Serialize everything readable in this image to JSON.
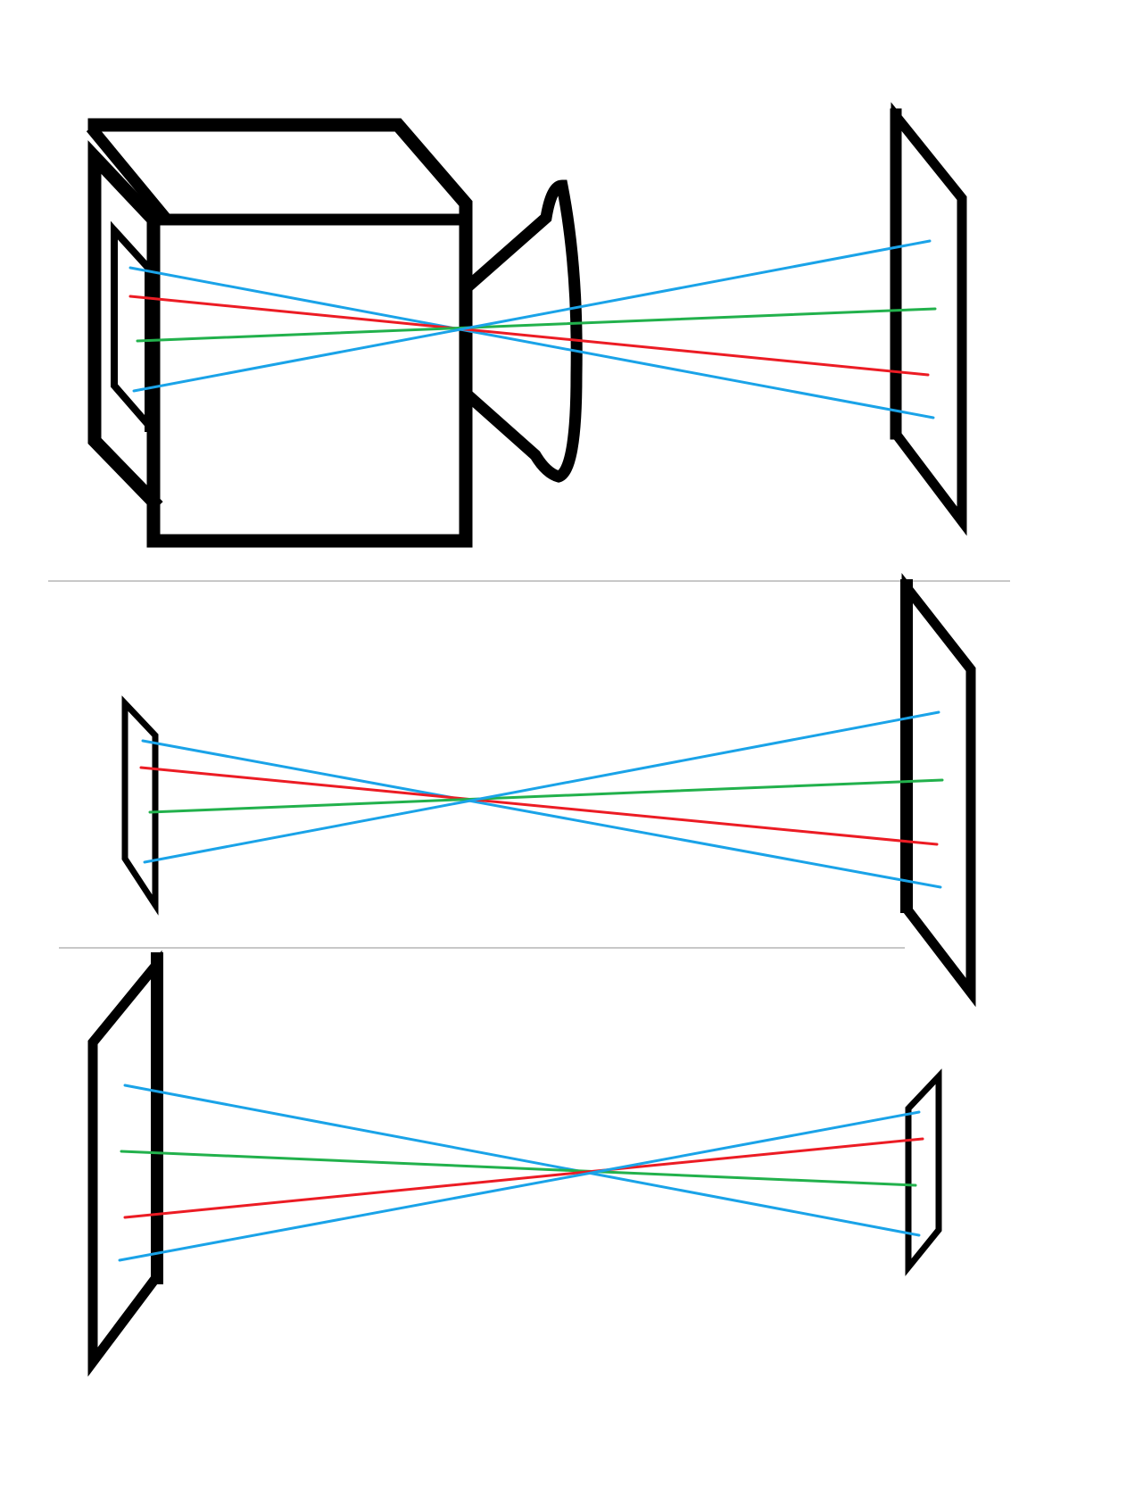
{
  "colors": {
    "outline": "#000000",
    "divider": "#c8c8c8",
    "ray_blue": "#1aa3e8",
    "ray_red": "#ec1c24",
    "ray_green": "#22b14c",
    "background": "#ffffff"
  },
  "panels": [
    {
      "name": "camera-projection",
      "description_icon": "camera-obscura-with-lens",
      "ray_colors": [
        "blue",
        "red",
        "green",
        "blue"
      ]
    },
    {
      "name": "small-plane-to-large-plane",
      "description_icon": "image-plane-pair",
      "ray_colors": [
        "blue",
        "red",
        "green",
        "blue"
      ]
    },
    {
      "name": "large-plane-to-small-plane",
      "description_icon": "image-plane-pair",
      "ray_colors": [
        "blue",
        "green",
        "red",
        "blue"
      ]
    }
  ]
}
